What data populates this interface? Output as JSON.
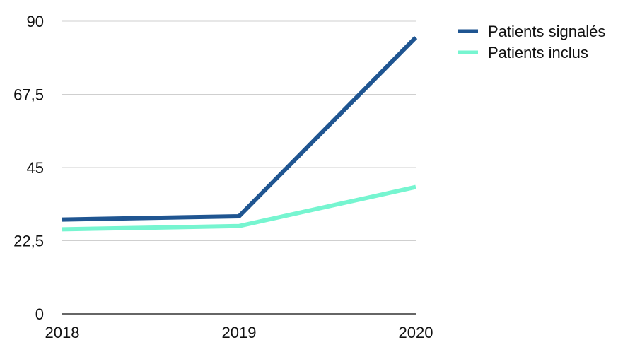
{
  "chart_data": {
    "type": "line",
    "categories": [
      "2018",
      "2019",
      "2020"
    ],
    "series": [
      {
        "name": "Patients signalés",
        "values": [
          29,
          30,
          85
        ],
        "color": "#1f5591"
      },
      {
        "name": "Patients inclus",
        "values": [
          26,
          27,
          39
        ],
        "color": "#76f5d0"
      }
    ],
    "y_ticks": [
      "0",
      "22,5",
      "45",
      "67,5",
      "90"
    ],
    "ylim": [
      0,
      90
    ],
    "grid": true,
    "legend": "top-right",
    "title": "",
    "xlabel": "",
    "ylabel": ""
  }
}
